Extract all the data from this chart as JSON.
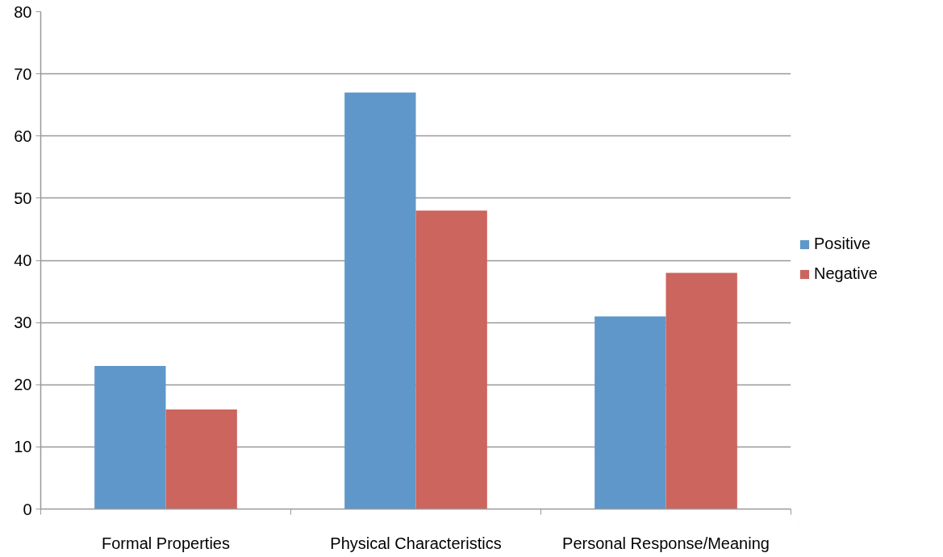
{
  "chart_data": {
    "type": "bar",
    "categories": [
      "Formal Properties",
      "Physical Characteristics",
      "Personal Response/Meaning"
    ],
    "series": [
      {
        "name": "Positive",
        "color": "#6097ca",
        "values": [
          23,
          67,
          31
        ]
      },
      {
        "name": "Negative",
        "color": "#cb655e",
        "values": [
          16,
          48,
          38
        ]
      }
    ],
    "ylim": [
      0,
      80
    ],
    "yticks": [
      0,
      10,
      20,
      30,
      40,
      50,
      60,
      70,
      80
    ],
    "grid": "y",
    "legend": "right"
  }
}
